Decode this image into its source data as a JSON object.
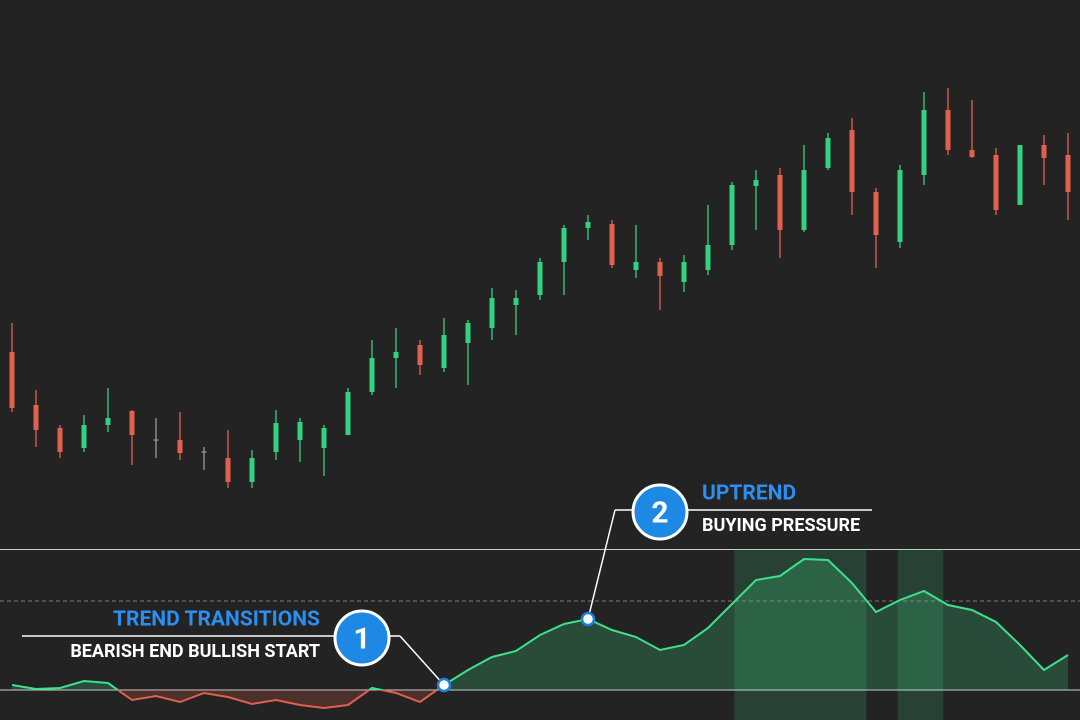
{
  "chart_data": {
    "type": "candlestick",
    "up_color": "#34d27f",
    "down_color": "#e0604f",
    "neutral_color": "#9a9a9a",
    "ylim": [
      0,
      720
    ],
    "open": [
      368,
      315,
      292,
      272,
      295,
      309,
      280,
      280,
      268,
      262,
      238,
      268,
      280,
      272,
      285,
      328,
      362,
      375,
      352,
      377,
      392,
      415,
      425,
      458,
      492,
      496,
      450,
      458,
      438,
      450,
      475,
      534,
      545,
      490,
      552,
      590,
      528,
      478,
      545,
      610,
      570,
      565,
      515,
      575,
      565
    ],
    "close": [
      312,
      290,
      268,
      295,
      302,
      285,
      280,
      267,
      268,
      238,
      262,
      297,
      298,
      292,
      328,
      362,
      368,
      355,
      385,
      397,
      422,
      422,
      458,
      492,
      498,
      455,
      458,
      444,
      458,
      475,
      535,
      540,
      490,
      550,
      582,
      528,
      485,
      550,
      610,
      570,
      563,
      510,
      575,
      562,
      528
    ],
    "high": [
      397,
      330,
      295,
      305,
      332,
      310,
      302,
      308,
      273,
      290,
      270,
      310,
      302,
      295,
      332,
      380,
      392,
      380,
      402,
      400,
      432,
      430,
      462,
      495,
      505,
      500,
      495,
      462,
      465,
      515,
      538,
      550,
      552,
      575,
      587,
      602,
      532,
      555,
      628,
      632,
      620,
      572,
      575,
      585,
      587
    ],
    "low": [
      308,
      273,
      262,
      268,
      288,
      255,
      262,
      260,
      250,
      232,
      232,
      260,
      258,
      244,
      285,
      325,
      332,
      345,
      348,
      335,
      380,
      385,
      420,
      425,
      480,
      452,
      442,
      410,
      428,
      445,
      470,
      490,
      462,
      488,
      550,
      505,
      452,
      472,
      535,
      565,
      562,
      505,
      515,
      535,
      500
    ],
    "indicator": {
      "color": "#3ee08c",
      "negative_color": "#e0604f",
      "ylim": [
        -30,
        141
      ],
      "levels": [
        {
          "value": 0,
          "style": "solid"
        },
        {
          "value": 89,
          "style": "dashed"
        }
      ],
      "highlight_ranges": [
        [
          30.1,
          35.6
        ],
        [
          36.9,
          38.8
        ]
      ],
      "values": [
        5,
        1,
        2,
        9,
        7,
        -10,
        -6,
        -12,
        -3,
        -7,
        -14,
        -10,
        -15,
        -18,
        -15,
        2,
        -3,
        -12,
        5,
        20,
        33,
        39,
        55,
        66,
        71,
        60,
        53,
        40,
        45,
        62,
        86,
        110,
        114,
        131,
        130,
        107,
        78,
        90,
        99,
        85,
        80,
        68,
        45,
        20,
        35
      ]
    },
    "annotations": [
      {
        "label": "1",
        "title": "TREND TRANSITIONS",
        "subtitle": "BEARISH END BULLISH START",
        "point_index": 18
      },
      {
        "label": "2",
        "title": "UPTREND",
        "subtitle": "BUYING PRESSURE",
        "point_index": 24
      }
    ]
  }
}
